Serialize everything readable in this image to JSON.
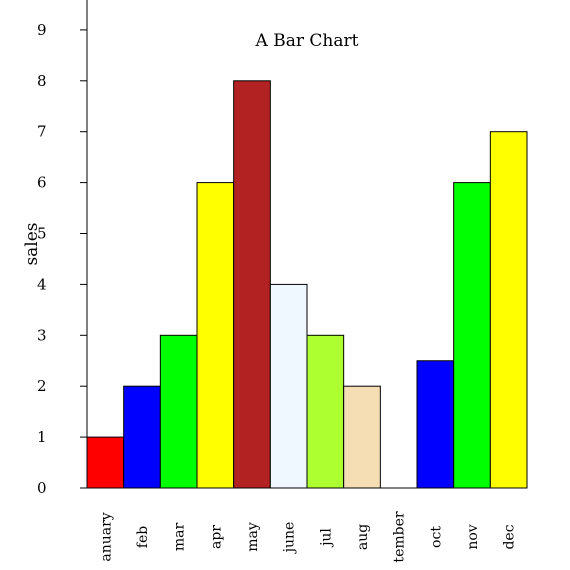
{
  "chart_data": {
    "type": "bar",
    "title": "A Bar Chart",
    "xlabel": "",
    "ylabel": "sales",
    "categories": [
      "anuary",
      "feb",
      "mar",
      "apr",
      "may",
      "june",
      "jul",
      "aug",
      "tember",
      "oct",
      "nov",
      "dec"
    ],
    "values": [
      1,
      2,
      3,
      6,
      8,
      4,
      3,
      2,
      0,
      2.5,
      6,
      7
    ],
    "colors": [
      "#ff0000",
      "#0000ff",
      "#00ff00",
      "#ffff00",
      "#b22222",
      "#f0f8ff",
      "#adff2f",
      "#f5deb3",
      "#ffffff",
      "#0000ff",
      "#00ff00",
      "#ffff00"
    ],
    "ylim": [
      0,
      9
    ],
    "yticks": [
      0,
      1,
      2,
      3,
      4,
      5,
      6,
      7,
      8,
      9
    ],
    "grid": false
  }
}
